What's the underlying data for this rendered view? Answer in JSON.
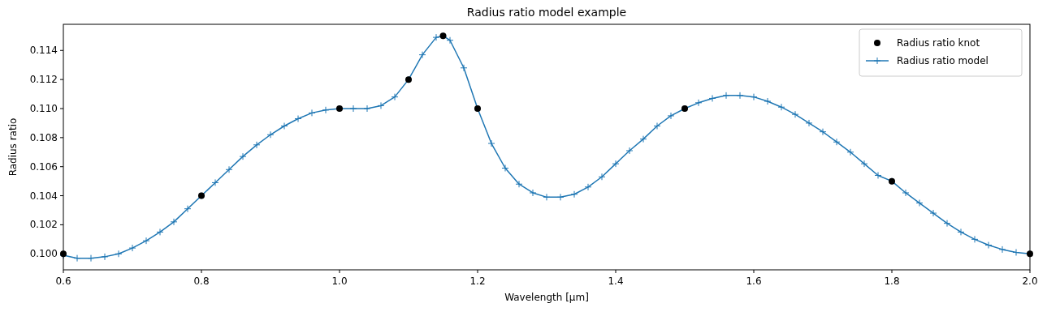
{
  "chart_data": {
    "type": "line",
    "title": "Radius ratio model example",
    "xlabel": "Wavelength [μm]",
    "ylabel": "Radius ratio",
    "xlim": [
      0.6,
      2.0
    ],
    "ylim": [
      0.0989,
      0.1158
    ],
    "xticks": [
      0.6,
      0.8,
      {
        "value": 1.0,
        "label": "1.0"
      },
      1.2,
      1.4,
      1.6,
      1.8,
      {
        "value": 2.0,
        "label": "2.0"
      }
    ],
    "yticks": [
      {
        "value": 0.1,
        "label": "0.100"
      },
      0.102,
      0.104,
      0.106,
      0.108,
      {
        "value": 0.11,
        "label": "0.110"
      },
      0.112,
      0.114
    ],
    "legend": "top right",
    "grid": false,
    "series": [
      {
        "name": "Radius ratio knot",
        "type": "scatter",
        "marker": "circle",
        "color": "#000000",
        "x": [
          0.6,
          0.8,
          1.0,
          1.1,
          1.15,
          1.2,
          1.5,
          1.8,
          2.0
        ],
        "values": [
          0.1,
          0.104,
          0.11,
          0.112,
          0.115,
          0.11,
          0.11,
          0.105,
          0.1
        ]
      },
      {
        "name": "Radius ratio model",
        "marker": "cross",
        "color": "#1f77b4",
        "x": [
          0.6,
          0.62,
          0.64,
          0.66,
          0.68,
          0.7,
          0.72,
          0.74,
          0.76,
          0.78,
          0.8,
          0.82,
          0.84,
          0.86,
          0.88,
          0.9,
          0.92,
          0.94,
          0.96,
          0.98,
          1.0,
          1.02,
          1.04,
          1.06,
          1.08,
          1.1,
          1.12,
          1.14,
          1.15,
          1.16,
          1.18,
          1.2,
          1.22,
          1.24,
          1.26,
          1.28,
          1.3,
          1.32,
          1.34,
          1.36,
          1.38,
          1.4,
          1.42,
          1.44,
          1.46,
          1.48,
          1.5,
          1.52,
          1.54,
          1.56,
          1.58,
          1.6,
          1.62,
          1.64,
          1.66,
          1.68,
          1.7,
          1.72,
          1.74,
          1.76,
          1.78,
          1.8,
          1.82,
          1.84,
          1.86,
          1.88,
          1.9,
          1.92,
          1.94,
          1.96,
          1.98,
          2.0
        ],
        "values": [
          0.0999,
          0.0997,
          0.0997,
          0.0998,
          0.1,
          0.1004,
          0.1009,
          0.1015,
          0.1022,
          0.1031,
          0.104,
          0.1049,
          0.1058,
          0.1067,
          0.1075,
          0.1082,
          0.1088,
          0.1093,
          0.1097,
          0.1099,
          0.11,
          0.11,
          0.11,
          0.1102,
          0.1108,
          0.112,
          0.1137,
          0.1149,
          0.115,
          0.1147,
          0.1128,
          0.11,
          0.1076,
          0.1059,
          0.1048,
          0.1042,
          0.1039,
          0.1039,
          0.1041,
          0.1046,
          0.1053,
          0.1062,
          0.1071,
          0.1079,
          0.1088,
          0.1095,
          0.11,
          0.1104,
          0.1107,
          0.1109,
          0.1109,
          0.1108,
          0.1105,
          0.1101,
          0.1096,
          0.109,
          0.1084,
          0.1077,
          0.107,
          0.1062,
          0.1054,
          0.105,
          0.1042,
          0.1035,
          0.1028,
          0.1021,
          0.1015,
          0.101,
          0.1006,
          0.1003,
          0.1001,
          0.1
        ]
      }
    ]
  }
}
